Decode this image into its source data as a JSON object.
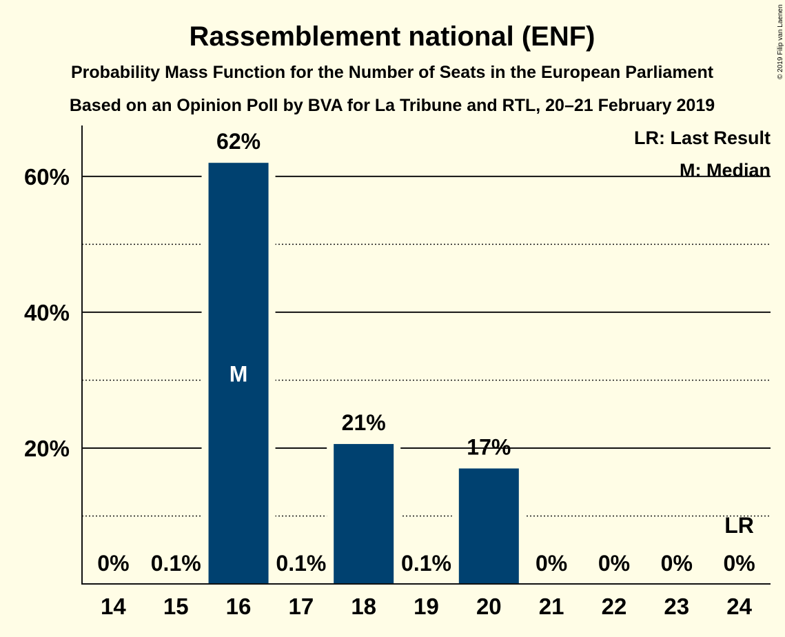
{
  "copyright": "© 2019 Filip van Laenen",
  "chart_data": {
    "type": "bar",
    "title": "Rassemblement national (ENF)",
    "subtitle1": "Probability Mass Function for the Number of Seats in the European Parliament",
    "subtitle2": "Based on an Opinion Poll by BVA for La Tribune and RTL, 20–21 February 2019",
    "categories": [
      "14",
      "15",
      "16",
      "17",
      "18",
      "19",
      "20",
      "21",
      "22",
      "23",
      "24"
    ],
    "values": [
      0,
      0.1,
      62,
      0.1,
      20.6,
      0.1,
      17,
      0,
      0,
      0,
      0
    ],
    "value_labels": [
      "0%",
      "0.1%",
      "62%",
      "0.1%",
      "21%",
      "0.1%",
      "17%",
      "0%",
      "0%",
      "0%",
      "0%"
    ],
    "ylim": [
      0,
      67.5
    ],
    "yticks": [
      20,
      40,
      60
    ],
    "ytick_labels": [
      "20%",
      "40%",
      "60%"
    ],
    "minor_gridlines": [
      10,
      30,
      50
    ],
    "bar_color": "#004170",
    "median_category": "16",
    "median_mark": "M",
    "last_result_category": "24",
    "last_result_mark": "LR",
    "legend": [
      "LR: Last Result",
      "M: Median"
    ],
    "legend_position": "top-right"
  }
}
